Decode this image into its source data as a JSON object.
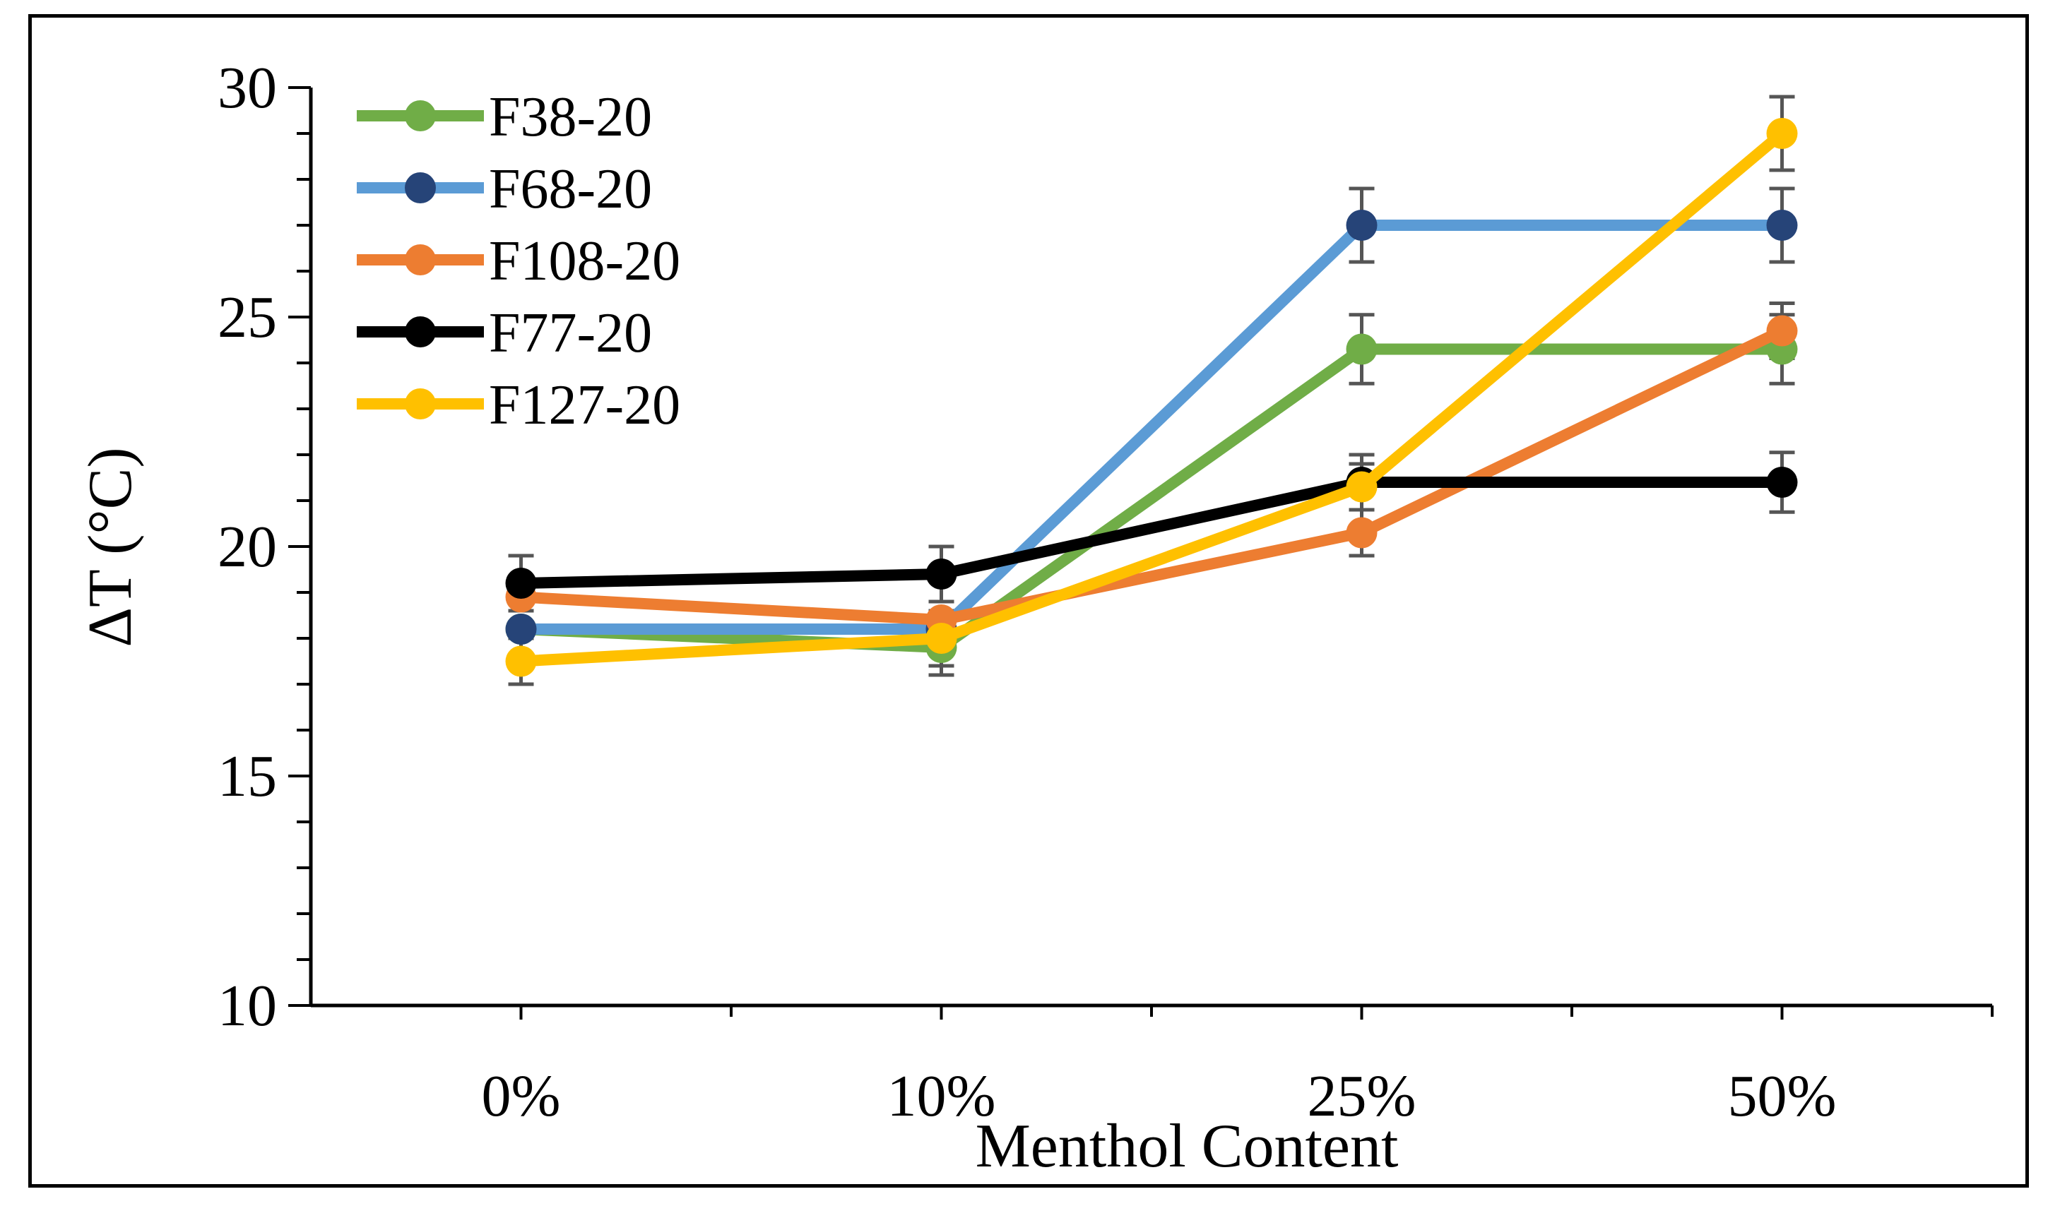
{
  "chart_data": {
    "type": "line",
    "title": "",
    "xlabel": "Menthol Content",
    "ylabel": "ΔT (°C)",
    "categories": [
      "0%",
      "10%",
      "25%",
      "50%"
    ],
    "ylim": [
      10,
      30
    ],
    "yticks": [
      10,
      15,
      20,
      25,
      30
    ],
    "y_minor_step": 1,
    "grid": false,
    "legend_position": "top-left",
    "series": [
      {
        "name": "F38-20",
        "color": "#70AD47",
        "values": [
          18.2,
          17.8,
          24.3,
          24.3
        ],
        "errors": [
          0,
          0.6,
          0.75,
          0.75
        ]
      },
      {
        "name": "F68-20",
        "color": "#5B9BD5",
        "marker_color": "#264478",
        "values": [
          18.2,
          18.2,
          27.0,
          27.0
        ],
        "errors": [
          0,
          0,
          0.8,
          0.8
        ]
      },
      {
        "name": "F108-20",
        "color": "#ED7D31",
        "values": [
          18.9,
          18.4,
          20.3,
          24.7
        ],
        "errors": [
          0,
          0,
          0.5,
          0.6
        ]
      },
      {
        "name": "F77-20",
        "color": "#000000",
        "values": [
          19.2,
          19.4,
          21.4,
          21.4
        ],
        "errors": [
          0.6,
          0.6,
          0.6,
          0.65
        ]
      },
      {
        "name": "F127-20",
        "color": "#FFC000",
        "values": [
          17.5,
          18.0,
          21.3,
          29.0
        ],
        "errors": [
          0.5,
          0.6,
          0.5,
          0.8
        ]
      }
    ]
  }
}
